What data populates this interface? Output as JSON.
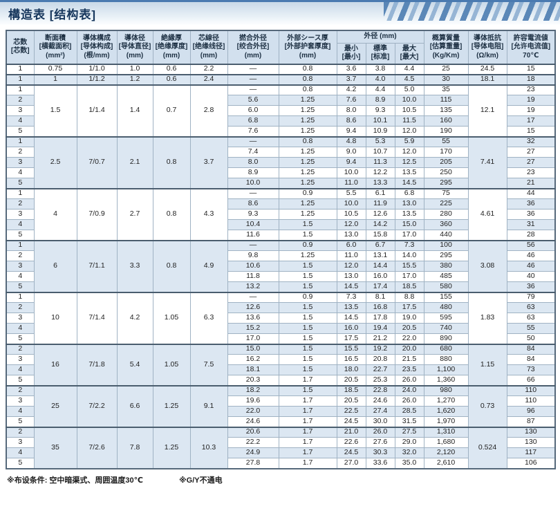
{
  "page": {
    "title": "構造表 [结构表]"
  },
  "table": {
    "header": {
      "top": [
        {
          "name": "col-header-cores",
          "text": "芯数\n[芯数]"
        },
        {
          "name": "col-header-area",
          "text": "断面積\n[横截面积]\n(mm²)"
        },
        {
          "name": "col-header-conductor",
          "text": "導体構成\n[导体构成]\n(根/mm)"
        },
        {
          "name": "col-header-conductor-dia",
          "text": "導体径\n[导体直径]\n(mm)"
        },
        {
          "name": "col-header-insulation",
          "text": "絶縁厚\n[绝缘厚度]\n(mm)"
        },
        {
          "name": "col-header-core-dia",
          "text": "芯線径\n[绝缘线径]\n(mm)"
        },
        {
          "name": "col-header-twist-od",
          "text": "撚合外径\n[绞合外径]\n(mm)"
        },
        {
          "name": "col-header-sheath",
          "text": "外部シース厚\n[外部护套厚度]\n(mm)"
        },
        {
          "name": "col-header-outer-diameter",
          "text": "外径 (mm)",
          "colspan": 3
        },
        {
          "name": "col-header-mass",
          "text": "概算質量\n[估算重量]\n(Kg/Km)"
        },
        {
          "name": "col-header-resistance",
          "text": "導体抵抗\n[导体电阻]\n(Ω/km)"
        },
        {
          "name": "col-header-current",
          "text": "許容電流値\n[允许电流值]\n70℃"
        }
      ],
      "sub": [
        {
          "name": "col-header-od-min",
          "text": "最小\n[最小]"
        },
        {
          "name": "col-header-od-std",
          "text": "標準\n[标准]"
        },
        {
          "name": "col-header-od-max",
          "text": "最大\n[最大]"
        }
      ]
    },
    "groups": [
      {
        "area": "0.75",
        "conductor": "1/1.0",
        "conductor_dia": "1.0",
        "insulation": "0.6",
        "core_dia": "2.2",
        "resistance": "24.5",
        "rows": [
          {
            "cores": "1",
            "twist": "—",
            "sheath": "0.8",
            "min": "3.6",
            "std": "3.8",
            "max": "4.4",
            "mass": "25",
            "current": "15"
          }
        ]
      },
      {
        "area": "1",
        "conductor": "1/1.2",
        "conductor_dia": "1.2",
        "insulation": "0.6",
        "core_dia": "2.4",
        "resistance": "18.1",
        "rows": [
          {
            "cores": "1",
            "twist": "—",
            "sheath": "0.8",
            "min": "3.7",
            "std": "4.0",
            "max": "4.5",
            "mass": "30",
            "current": "18"
          }
        ]
      },
      {
        "area": "1.5",
        "conductor": "1/1.4",
        "conductor_dia": "1.4",
        "insulation": "0.7",
        "core_dia": "2.8",
        "resistance": "12.1",
        "rows": [
          {
            "cores": "1",
            "twist": "—",
            "sheath": "0.8",
            "min": "4.2",
            "std": "4.4",
            "max": "5.0",
            "mass": "35",
            "current": "23"
          },
          {
            "cores": "2",
            "twist": "5.6",
            "sheath": "1.25",
            "min": "7.6",
            "std": "8.9",
            "max": "10.0",
            "mass": "115",
            "current": "19"
          },
          {
            "cores": "3",
            "twist": "6.0",
            "sheath": "1.25",
            "min": "8.0",
            "std": "9.3",
            "max": "10.5",
            "mass": "135",
            "current": "19"
          },
          {
            "cores": "4",
            "twist": "6.8",
            "sheath": "1.25",
            "min": "8.6",
            "std": "10.1",
            "max": "11.5",
            "mass": "160",
            "current": "17"
          },
          {
            "cores": "5",
            "twist": "7.6",
            "sheath": "1.25",
            "min": "9.4",
            "std": "10.9",
            "max": "12.0",
            "mass": "190",
            "current": "15"
          }
        ]
      },
      {
        "area": "2.5",
        "conductor": "7/0.7",
        "conductor_dia": "2.1",
        "insulation": "0.8",
        "core_dia": "3.7",
        "resistance": "7.41",
        "rows": [
          {
            "cores": "1",
            "twist": "—",
            "sheath": "0.8",
            "min": "4.8",
            "std": "5.3",
            "max": "5.9",
            "mass": "55",
            "current": "32"
          },
          {
            "cores": "2",
            "twist": "7.4",
            "sheath": "1.25",
            "min": "9.0",
            "std": "10.7",
            "max": "12.0",
            "mass": "170",
            "current": "27"
          },
          {
            "cores": "3",
            "twist": "8.0",
            "sheath": "1.25",
            "min": "9.4",
            "std": "11.3",
            "max": "12.5",
            "mass": "205",
            "current": "27"
          },
          {
            "cores": "4",
            "twist": "8.9",
            "sheath": "1.25",
            "min": "10.0",
            "std": "12.2",
            "max": "13.5",
            "mass": "250",
            "current": "23"
          },
          {
            "cores": "5",
            "twist": "10.0",
            "sheath": "1.25",
            "min": "11.0",
            "std": "13.3",
            "max": "14.5",
            "mass": "295",
            "current": "21"
          }
        ]
      },
      {
        "area": "4",
        "conductor": "7/0.9",
        "conductor_dia": "2.7",
        "insulation": "0.8",
        "core_dia": "4.3",
        "resistance": "4.61",
        "rows": [
          {
            "cores": "1",
            "twist": "—",
            "sheath": "0.9",
            "min": "5.5",
            "std": "6.1",
            "max": "6.8",
            "mass": "75",
            "current": "44"
          },
          {
            "cores": "2",
            "twist": "8.6",
            "sheath": "1.25",
            "min": "10.0",
            "std": "11.9",
            "max": "13.0",
            "mass": "225",
            "current": "36"
          },
          {
            "cores": "3",
            "twist": "9.3",
            "sheath": "1.25",
            "min": "10.5",
            "std": "12.6",
            "max": "13.5",
            "mass": "280",
            "current": "36"
          },
          {
            "cores": "4",
            "twist": "10.4",
            "sheath": "1.5",
            "min": "12.0",
            "std": "14.2",
            "max": "15.0",
            "mass": "360",
            "current": "31"
          },
          {
            "cores": "5",
            "twist": "11.6",
            "sheath": "1.5",
            "min": "13.0",
            "std": "15.8",
            "max": "17.0",
            "mass": "440",
            "current": "28"
          }
        ]
      },
      {
        "area": "6",
        "conductor": "7/1.1",
        "conductor_dia": "3.3",
        "insulation": "0.8",
        "core_dia": "4.9",
        "resistance": "3.08",
        "rows": [
          {
            "cores": "1",
            "twist": "—",
            "sheath": "0.9",
            "min": "6.0",
            "std": "6.7",
            "max": "7.3",
            "mass": "100",
            "current": "56"
          },
          {
            "cores": "2",
            "twist": "9.8",
            "sheath": "1.25",
            "min": "11.0",
            "std": "13.1",
            "max": "14.0",
            "mass": "295",
            "current": "46"
          },
          {
            "cores": "3",
            "twist": "10.6",
            "sheath": "1.5",
            "min": "12.0",
            "std": "14.4",
            "max": "15.5",
            "mass": "380",
            "current": "46"
          },
          {
            "cores": "4",
            "twist": "11.8",
            "sheath": "1.5",
            "min": "13.0",
            "std": "16.0",
            "max": "17.0",
            "mass": "485",
            "current": "40"
          },
          {
            "cores": "5",
            "twist": "13.2",
            "sheath": "1.5",
            "min": "14.5",
            "std": "17.4",
            "max": "18.5",
            "mass": "580",
            "current": "36"
          }
        ]
      },
      {
        "area": "10",
        "conductor": "7/1.4",
        "conductor_dia": "4.2",
        "insulation": "1.05",
        "core_dia": "6.3",
        "resistance": "1.83",
        "rows": [
          {
            "cores": "1",
            "twist": "—",
            "sheath": "0.9",
            "min": "7.3",
            "std": "8.1",
            "max": "8.8",
            "mass": "155",
            "current": "79"
          },
          {
            "cores": "2",
            "twist": "12.6",
            "sheath": "1.5",
            "min": "13.5",
            "std": "16.8",
            "max": "17.5",
            "mass": "480",
            "current": "63"
          },
          {
            "cores": "3",
            "twist": "13.6",
            "sheath": "1.5",
            "min": "14.5",
            "std": "17.8",
            "max": "19.0",
            "mass": "595",
            "current": "63"
          },
          {
            "cores": "4",
            "twist": "15.2",
            "sheath": "1.5",
            "min": "16.0",
            "std": "19.4",
            "max": "20.5",
            "mass": "740",
            "current": "55"
          },
          {
            "cores": "5",
            "twist": "17.0",
            "sheath": "1.5",
            "min": "17.5",
            "std": "21.2",
            "max": "22.0",
            "mass": "890",
            "current": "50"
          }
        ]
      },
      {
        "area": "16",
        "conductor": "7/1.8",
        "conductor_dia": "5.4",
        "insulation": "1.05",
        "core_dia": "7.5",
        "resistance": "1.15",
        "rows": [
          {
            "cores": "2",
            "twist": "15.0",
            "sheath": "1.5",
            "min": "15.5",
            "std": "19.2",
            "max": "20.0",
            "mass": "680",
            "current": "84"
          },
          {
            "cores": "3",
            "twist": "16.2",
            "sheath": "1.5",
            "min": "16.5",
            "std": "20.8",
            "max": "21.5",
            "mass": "880",
            "current": "84"
          },
          {
            "cores": "4",
            "twist": "18.1",
            "sheath": "1.5",
            "min": "18.0",
            "std": "22.7",
            "max": "23.5",
            "mass": "1,100",
            "current": "73"
          },
          {
            "cores": "5",
            "twist": "20.3",
            "sheath": "1.7",
            "min": "20.5",
            "std": "25.3",
            "max": "26.0",
            "mass": "1,360",
            "current": "66"
          }
        ]
      },
      {
        "area": "25",
        "conductor": "7/2.2",
        "conductor_dia": "6.6",
        "insulation": "1.25",
        "core_dia": "9.1",
        "resistance": "0.73",
        "rows": [
          {
            "cores": "2",
            "twist": "18.2",
            "sheath": "1.5",
            "min": "18.5",
            "std": "22.8",
            "max": "24.0",
            "mass": "980",
            "current": "110"
          },
          {
            "cores": "3",
            "twist": "19.6",
            "sheath": "1.7",
            "min": "20.5",
            "std": "24.6",
            "max": "26.0",
            "mass": "1,270",
            "current": "110"
          },
          {
            "cores": "4",
            "twist": "22.0",
            "sheath": "1.7",
            "min": "22.5",
            "std": "27.4",
            "max": "28.5",
            "mass": "1,620",
            "current": "96"
          },
          {
            "cores": "5",
            "twist": "24.6",
            "sheath": "1.7",
            "min": "24.5",
            "std": "30.0",
            "max": "31.5",
            "mass": "1,970",
            "current": "87"
          }
        ]
      },
      {
        "area": "35",
        "conductor": "7/2.6",
        "conductor_dia": "7.8",
        "insulation": "1.25",
        "core_dia": "10.3",
        "resistance": "0.524",
        "rows": [
          {
            "cores": "2",
            "twist": "20.6",
            "sheath": "1.7",
            "min": "21.0",
            "std": "26.0",
            "max": "27.5",
            "mass": "1,310",
            "current": "130"
          },
          {
            "cores": "3",
            "twist": "22.2",
            "sheath": "1.7",
            "min": "22.6",
            "std": "27.6",
            "max": "29.0",
            "mass": "1,680",
            "current": "130"
          },
          {
            "cores": "4",
            "twist": "24.9",
            "sheath": "1.7",
            "min": "24.5",
            "std": "30.3",
            "max": "32.0",
            "mass": "2,120",
            "current": "117"
          },
          {
            "cores": "5",
            "twist": "27.8",
            "sheath": "1.7",
            "min": "27.0",
            "std": "33.6",
            "max": "35.0",
            "mass": "2,610",
            "current": "106"
          }
        ]
      }
    ]
  },
  "footer": {
    "note1": "※布设条件: 空中暗渠式、周囲温度30℃",
    "note2": "※G/Y不通电"
  },
  "colors": {
    "accent_blue": "#4a7ab0",
    "header_bg": "#d2e0ee",
    "stripe_bg": "#dce7f2",
    "title_text": "#16365c"
  }
}
